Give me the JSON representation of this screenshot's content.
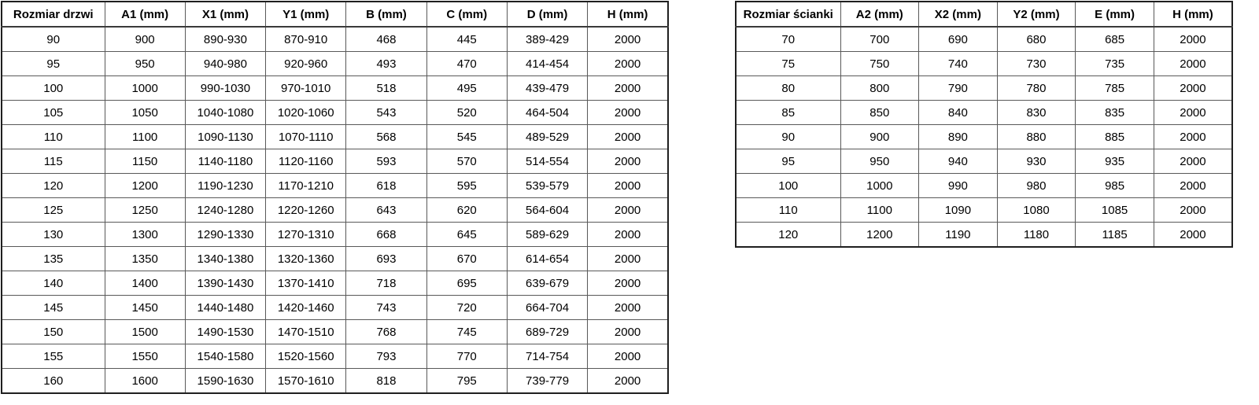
{
  "door_table": {
    "headers": [
      "Rozmiar drzwi",
      "A1 (mm)",
      "X1 (mm)",
      "Y1 (mm)",
      "B (mm)",
      "C (mm)",
      "D (mm)",
      "H (mm)"
    ],
    "rows": [
      [
        "90",
        "900",
        "890-930",
        "870-910",
        "468",
        "445",
        "389-429",
        "2000"
      ],
      [
        "95",
        "950",
        "940-980",
        "920-960",
        "493",
        "470",
        "414-454",
        "2000"
      ],
      [
        "100",
        "1000",
        "990-1030",
        "970-1010",
        "518",
        "495",
        "439-479",
        "2000"
      ],
      [
        "105",
        "1050",
        "1040-1080",
        "1020-1060",
        "543",
        "520",
        "464-504",
        "2000"
      ],
      [
        "110",
        "1100",
        "1090-1130",
        "1070-1110",
        "568",
        "545",
        "489-529",
        "2000"
      ],
      [
        "115",
        "1150",
        "1140-1180",
        "1120-1160",
        "593",
        "570",
        "514-554",
        "2000"
      ],
      [
        "120",
        "1200",
        "1190-1230",
        "1170-1210",
        "618",
        "595",
        "539-579",
        "2000"
      ],
      [
        "125",
        "1250",
        "1240-1280",
        "1220-1260",
        "643",
        "620",
        "564-604",
        "2000"
      ],
      [
        "130",
        "1300",
        "1290-1330",
        "1270-1310",
        "668",
        "645",
        "589-629",
        "2000"
      ],
      [
        "135",
        "1350",
        "1340-1380",
        "1320-1360",
        "693",
        "670",
        "614-654",
        "2000"
      ],
      [
        "140",
        "1400",
        "1390-1430",
        "1370-1410",
        "718",
        "695",
        "639-679",
        "2000"
      ],
      [
        "145",
        "1450",
        "1440-1480",
        "1420-1460",
        "743",
        "720",
        "664-704",
        "2000"
      ],
      [
        "150",
        "1500",
        "1490-1530",
        "1470-1510",
        "768",
        "745",
        "689-729",
        "2000"
      ],
      [
        "155",
        "1550",
        "1540-1580",
        "1520-1560",
        "793",
        "770",
        "714-754",
        "2000"
      ],
      [
        "160",
        "1600",
        "1590-1630",
        "1570-1610",
        "818",
        "795",
        "739-779",
        "2000"
      ]
    ]
  },
  "wall_table": {
    "headers": [
      "Rozmiar ścianki",
      "A2 (mm)",
      "X2 (mm)",
      "Y2 (mm)",
      "E (mm)",
      "H (mm)"
    ],
    "rows": [
      [
        "70",
        "700",
        "690",
        "680",
        "685",
        "2000"
      ],
      [
        "75",
        "750",
        "740",
        "730",
        "735",
        "2000"
      ],
      [
        "80",
        "800",
        "790",
        "780",
        "785",
        "2000"
      ],
      [
        "85",
        "850",
        "840",
        "830",
        "835",
        "2000"
      ],
      [
        "90",
        "900",
        "890",
        "880",
        "885",
        "2000"
      ],
      [
        "95",
        "950",
        "940",
        "930",
        "935",
        "2000"
      ],
      [
        "100",
        "1000",
        "990",
        "980",
        "985",
        "2000"
      ],
      [
        "110",
        "1100",
        "1090",
        "1080",
        "1085",
        "2000"
      ],
      [
        "120",
        "1200",
        "1190",
        "1180",
        "1185",
        "2000"
      ]
    ]
  },
  "colors": {
    "background": "#ffffff",
    "text": "#000000",
    "border_outer": "#1f1f1f",
    "border_inner": "#595959"
  }
}
